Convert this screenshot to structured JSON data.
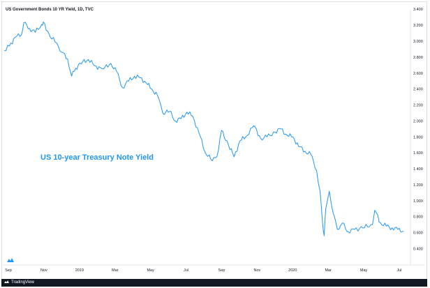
{
  "header": {
    "symbol_title": "US Government Bonds 10 YR Yield, 1D, TVC"
  },
  "annotation": "US 10-year Treasury Note Yield",
  "footer": {
    "brand": "TradingView"
  },
  "icons": {
    "watermark": "tradingview-logo-icon",
    "footer_logo": "tradingview-logo-icon"
  },
  "colors": {
    "line": "#2196f3",
    "annotation": "#2196f3",
    "footer_bg": "#131722"
  },
  "chart_data": {
    "type": "line",
    "x_tick_labels": [
      "Sep",
      "Nov",
      "2019",
      "Mar",
      "May",
      "Jul",
      "Sep",
      "Nov",
      "2020",
      "Mar",
      "May",
      "Jul"
    ],
    "y_tick_labels": [
      "0.400",
      "0.600",
      "0.800",
      "1.000",
      "1.200",
      "1.400",
      "1.600",
      "1.800",
      "2.000",
      "2.200",
      "2.400",
      "2.600",
      "2.800",
      "3.000",
      "3.200",
      "3.400"
    ],
    "ylim": [
      0.3,
      3.5
    ],
    "x_range": [
      "2018-09",
      "2020-08"
    ],
    "grid": false,
    "series": [
      {
        "x": [
          "2018-09-01",
          "2018-09-10",
          "2018-09-20",
          "2018-10-01",
          "2018-10-05",
          "2018-10-15",
          "2018-10-25",
          "2018-11-05",
          "2018-11-08",
          "2018-11-20",
          "2018-12-01",
          "2018-12-10",
          "2018-12-20",
          "2018-12-27",
          "2019-01-03",
          "2019-01-15",
          "2019-01-25",
          "2019-02-05",
          "2019-02-20",
          "2019-03-05",
          "2019-03-15",
          "2019-03-25",
          "2019-04-05",
          "2019-04-15",
          "2019-04-25",
          "2019-05-05",
          "2019-05-15",
          "2019-05-25",
          "2019-06-03",
          "2019-06-15",
          "2019-06-25",
          "2019-07-05",
          "2019-07-15",
          "2019-07-25",
          "2019-08-05",
          "2019-08-15",
          "2019-08-28",
          "2019-09-05",
          "2019-09-13",
          "2019-09-25",
          "2019-10-05",
          "2019-10-15",
          "2019-10-25",
          "2019-11-08",
          "2019-11-20",
          "2019-12-01",
          "2019-12-15",
          "2019-12-25",
          "2020-01-05",
          "2020-01-15",
          "2020-01-25",
          "2020-02-05",
          "2020-02-15",
          "2020-02-25",
          "2020-03-02",
          "2020-03-06",
          "2020-03-09",
          "2020-03-12",
          "2020-03-18",
          "2020-03-25",
          "2020-04-01",
          "2020-04-10",
          "2020-04-20",
          "2020-05-01",
          "2020-05-15",
          "2020-06-01",
          "2020-06-05",
          "2020-06-15",
          "2020-06-25",
          "2020-07-05",
          "2020-07-15",
          "2020-07-25"
        ],
        "values": [
          2.88,
          2.94,
          3.05,
          3.08,
          3.23,
          3.16,
          3.11,
          3.21,
          3.24,
          3.05,
          2.98,
          2.86,
          2.78,
          2.56,
          2.66,
          2.74,
          2.77,
          2.69,
          2.65,
          2.72,
          2.62,
          2.42,
          2.5,
          2.56,
          2.54,
          2.48,
          2.4,
          2.32,
          2.1,
          2.12,
          2.0,
          2.03,
          2.11,
          2.06,
          1.85,
          1.62,
          1.5,
          1.55,
          1.88,
          1.7,
          1.55,
          1.75,
          1.8,
          1.94,
          1.78,
          1.8,
          1.86,
          1.9,
          1.82,
          1.8,
          1.68,
          1.62,
          1.58,
          1.38,
          1.12,
          0.75,
          0.56,
          0.9,
          1.12,
          0.84,
          0.64,
          0.72,
          0.61,
          0.64,
          0.66,
          0.7,
          0.88,
          0.72,
          0.68,
          0.66,
          0.64,
          0.62
        ]
      }
    ]
  }
}
